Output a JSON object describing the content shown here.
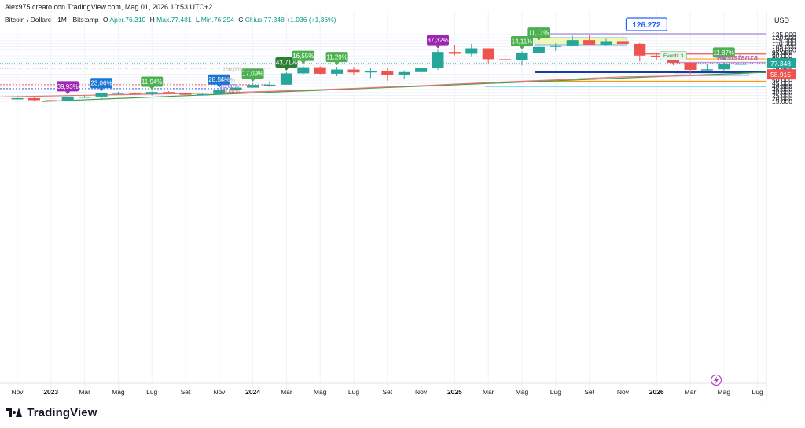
{
  "header": {
    "created_line": "Alex975 creato con TradingView.com, Mag 01, 2026 10:53 UTC+2",
    "symbol": "Bitcoin / Dollaro · 1M · Bitstamp",
    "open_label": "O",
    "open_value": "Aper.76.310",
    "high_label": "H",
    "high_value": "Max.77.481",
    "low_label": "L",
    "low_value": "Min.76.294",
    "close_label": "C",
    "close_value": "Chius.77.348",
    "change_value": "+1.036 (+1,36%)"
  },
  "currency": "USD",
  "brand": {
    "name": "TradingView"
  },
  "colors": {
    "up": "#26a69a",
    "down": "#ef5350",
    "green_tag": "#4caf50",
    "purple_tag": "#9c27b0",
    "blue_tag": "#1976d2",
    "dark_tag": "#2e7d32"
  },
  "chart_data": {
    "type": "candlestick",
    "ylim": [
      12000,
      132000
    ],
    "y_ticks": [
      "15.000",
      "20.000",
      "25.000",
      "30.000",
      "35.000",
      "40.000",
      "45.000",
      "50.000",
      "55.000",
      "60.000",
      "65.000",
      "70.000",
      "75.000",
      "80.000",
      "85.000",
      "90.000",
      "95.000",
      "100.000",
      "105.000",
      "110.000",
      "115.000",
      "120.000",
      "125.000"
    ],
    "x_ticks": [
      {
        "i": 0,
        "label": "Nov"
      },
      {
        "i": 2,
        "label": "2023"
      },
      {
        "i": 4,
        "label": "Mar"
      },
      {
        "i": 6,
        "label": "Mag"
      },
      {
        "i": 8,
        "label": "Lug"
      },
      {
        "i": 10,
        "label": "Set"
      },
      {
        "i": 12,
        "label": "Nov"
      },
      {
        "i": 14,
        "label": "2024"
      },
      {
        "i": 16,
        "label": "Mar"
      },
      {
        "i": 18,
        "label": "Mag"
      },
      {
        "i": 20,
        "label": "Lug"
      },
      {
        "i": 22,
        "label": "Set"
      },
      {
        "i": 24,
        "label": "Nov"
      },
      {
        "i": 26,
        "label": "2025"
      },
      {
        "i": 28,
        "label": "Mar"
      },
      {
        "i": 30,
        "label": "Mag"
      },
      {
        "i": 32,
        "label": "Lug"
      },
      {
        "i": 34,
        "label": "Set"
      },
      {
        "i": 36,
        "label": "Nov"
      },
      {
        "i": 38,
        "label": "2026"
      },
      {
        "i": 40,
        "label": "Mar"
      },
      {
        "i": 42,
        "label": "Mag"
      },
      {
        "i": 44,
        "label": "Lug"
      }
    ],
    "candles": [
      {
        "o": 20500,
        "h": 21500,
        "l": 18000,
        "c": 20500
      },
      {
        "o": 20500,
        "h": 21500,
        "l": 16500,
        "c": 17200
      },
      {
        "o": 17200,
        "h": 17500,
        "l": 15500,
        "c": 16600
      },
      {
        "o": 16600,
        "h": 23800,
        "l": 16500,
        "c": 23100
      },
      {
        "o": 23100,
        "h": 25200,
        "l": 21400,
        "c": 23100
      },
      {
        "o": 23100,
        "h": 29200,
        "l": 19600,
        "c": 28400
      },
      {
        "o": 28400,
        "h": 31000,
        "l": 26900,
        "c": 29300
      },
      {
        "o": 29300,
        "h": 29800,
        "l": 25800,
        "c": 27200
      },
      {
        "o": 27200,
        "h": 31400,
        "l": 24900,
        "c": 30500
      },
      {
        "o": 30500,
        "h": 31900,
        "l": 28900,
        "c": 29200
      },
      {
        "o": 29200,
        "h": 30100,
        "l": 25300,
        "c": 26000
      },
      {
        "o": 26000,
        "h": 28000,
        "l": 25000,
        "c": 27000
      },
      {
        "o": 27000,
        "h": 35000,
        "l": 26600,
        "c": 34600
      },
      {
        "o": 34600,
        "h": 38000,
        "l": 34000,
        "c": 37700
      },
      {
        "o": 37700,
        "h": 44700,
        "l": 37700,
        "c": 42300
      },
      {
        "o": 42300,
        "h": 48900,
        "l": 38500,
        "c": 42600
      },
      {
        "o": 42600,
        "h": 63000,
        "l": 42500,
        "c": 61200
      },
      {
        "o": 61200,
        "h": 73800,
        "l": 59200,
        "c": 71300
      },
      {
        "o": 71300,
        "h": 72800,
        "l": 59600,
        "c": 60600
      },
      {
        "o": 60600,
        "h": 71900,
        "l": 56500,
        "c": 67500
      },
      {
        "o": 67500,
        "h": 71900,
        "l": 58600,
        "c": 62700
      },
      {
        "o": 62700,
        "h": 70000,
        "l": 53500,
        "c": 64600
      },
      {
        "o": 64600,
        "h": 70000,
        "l": 49100,
        "c": 58900
      },
      {
        "o": 58900,
        "h": 66000,
        "l": 52600,
        "c": 63300
      },
      {
        "o": 63300,
        "h": 73600,
        "l": 58900,
        "c": 70300
      },
      {
        "o": 70300,
        "h": 99600,
        "l": 66800,
        "c": 96400
      },
      {
        "o": 96400,
        "h": 108300,
        "l": 90800,
        "c": 93400
      },
      {
        "o": 93400,
        "h": 109500,
        "l": 89200,
        "c": 102400
      },
      {
        "o": 102400,
        "h": 102500,
        "l": 78200,
        "c": 84400
      },
      {
        "o": 84400,
        "h": 95000,
        "l": 76600,
        "c": 82500
      },
      {
        "o": 82500,
        "h": 97900,
        "l": 74400,
        "c": 94200
      },
      {
        "o": 94200,
        "h": 111900,
        "l": 93400,
        "c": 104600
      },
      {
        "o": 104600,
        "h": 110400,
        "l": 98300,
        "c": 107100
      },
      {
        "o": 107100,
        "h": 123200,
        "l": 105300,
        "c": 115800
      },
      {
        "o": 115800,
        "h": 124500,
        "l": 108100,
        "c": 108300
      },
      {
        "o": 108300,
        "h": 117900,
        "l": 107300,
        "c": 114100
      },
      {
        "o": 114100,
        "h": 126300,
        "l": 103500,
        "c": 109600
      },
      {
        "o": 109600,
        "h": 111200,
        "l": 80600,
        "c": 90400
      },
      {
        "o": 90400,
        "h": 94600,
        "l": 83800,
        "c": 87600
      },
      {
        "o": 87600,
        "h": 97900,
        "l": 74600,
        "c": 78600
      },
      {
        "o": 78600,
        "h": 79300,
        "l": 60000,
        "c": 67000
      },
      {
        "o": 67000,
        "h": 76000,
        "l": 65000,
        "c": 67900
      },
      {
        "o": 67900,
        "h": 79400,
        "l": 65700,
        "c": 76300
      },
      {
        "o": 76300,
        "h": 77500,
        "l": 76300,
        "c": 77348
      }
    ],
    "tags": [
      {
        "i": 3,
        "text": "39,93%",
        "color": "purple"
      },
      {
        "i": 5,
        "text": "23,06%",
        "color": "blue"
      },
      {
        "i": 8,
        "text": "11,94%",
        "color": "green"
      },
      {
        "i": 12,
        "text": "28,54%",
        "color": "blue"
      },
      {
        "i": 14,
        "text": "17,09%",
        "color": "green"
      },
      {
        "i": 16,
        "text": "43,71%",
        "color": "dark"
      },
      {
        "i": 17,
        "text": "16,55%",
        "color": "green"
      },
      {
        "i": 19,
        "text": "11,29%",
        "color": "green"
      },
      {
        "i": 25,
        "text": "37,32%",
        "color": "purple"
      },
      {
        "i": 30,
        "text": "14,11%",
        "color": "green"
      },
      {
        "i": 31,
        "text": "11,11%",
        "color": "green"
      },
      {
        "i": 42,
        "text": "11,87%",
        "color": "green"
      }
    ],
    "annotations": {
      "ath_label": "126.272",
      "resistance_label": "Resistenza",
      "price_label": "77.348",
      "ma_label": "58.915",
      "fib_100": "100,00%",
      "fib_50": "50,00%",
      "fib_0": "0,00%",
      "fib_236": "23,60%",
      "event_label": "Eventi: 3"
    },
    "levels": {
      "ath": 126272,
      "red": 93000,
      "orange_top": 85000,
      "resistance": 79000,
      "price": 77348,
      "blue": 63000,
      "ma_end": 58915,
      "orange_low": 48000,
      "teal": 39000,
      "red_dotted": 42500,
      "blue_dotted": 36000,
      "fib_100": 69000
    }
  }
}
